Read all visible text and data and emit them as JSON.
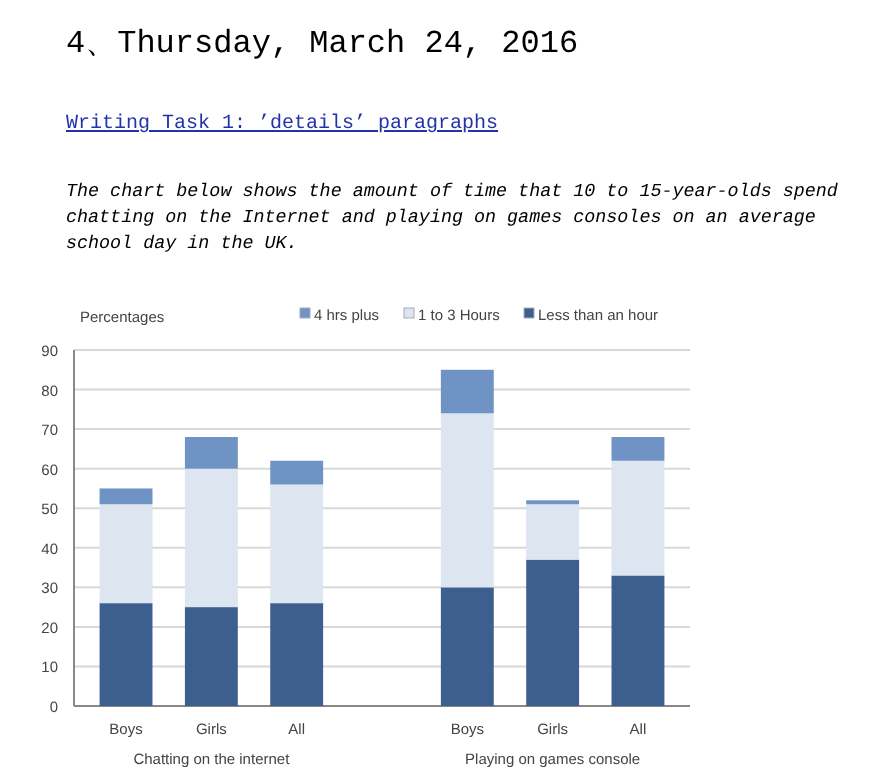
{
  "chart_data": {
    "type": "bar",
    "stacked": true,
    "title": "4、Thursday, March 24, 2016",
    "subtitle": "Writing Task 1: ’details’ paragraphs",
    "ylabel": "Percentages",
    "annotations": [
      "The chart below shows the amount of time that 10 to 15-year-olds spend chatting on the Internet and playing on games consoles on an average school day in the UK.",
      "Chatting on the internet",
      "Playing on games console"
    ],
    "categories": [
      "Boys",
      "Girls",
      "All",
      null,
      "Boys",
      "Girls",
      "All"
    ],
    "series": [
      {
        "name": "Less than an hour",
        "color": "#3d5f8f",
        "values": [
          26,
          25,
          26,
          null,
          30,
          37,
          33
        ]
      },
      {
        "name": "1 to 3 Hours",
        "color": "#dde5f0",
        "values": [
          25,
          35,
          30,
          null,
          44,
          14,
          29
        ]
      },
      {
        "name": "4 hrs plus",
        "color": "#6e93c4",
        "values": [
          4,
          8,
          6,
          null,
          11,
          1,
          6
        ]
      }
    ],
    "ylim": [
      0,
      90
    ],
    "yticks": [
      0,
      10,
      20,
      30,
      40,
      50,
      60,
      70,
      80,
      90
    ],
    "grid": "y",
    "legend": "top"
  }
}
